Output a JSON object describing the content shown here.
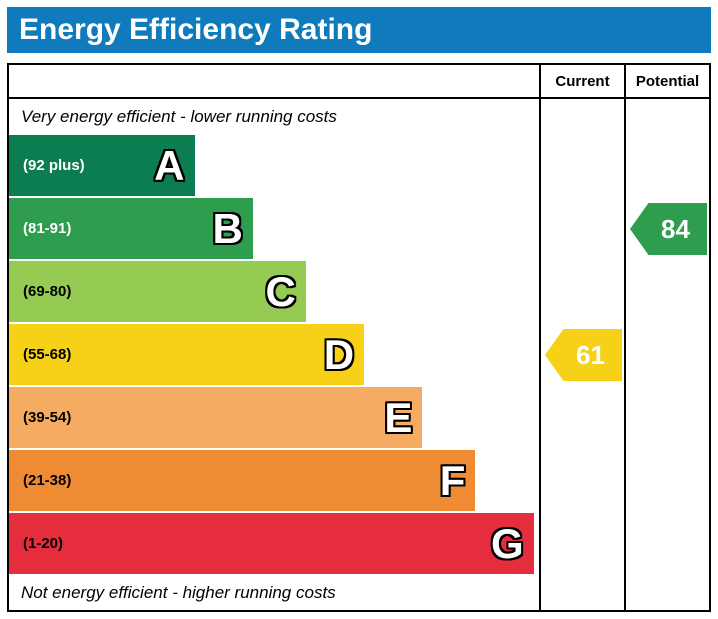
{
  "header": {
    "title": "Energy Efficiency Rating",
    "background_color": "#0f7abc",
    "text_color": "#ffffff"
  },
  "chart_data": {
    "type": "bar",
    "title": "Energy Efficiency Rating",
    "columns": [
      "Current",
      "Potential"
    ],
    "top_note": "Very energy efficient - lower running costs",
    "bottom_note": "Not energy efficient - higher running costs",
    "bands": [
      {
        "letter": "A",
        "range": "(92 plus)",
        "color": "#0c7d50",
        "width_pct": 35,
        "range_text_color": "#ffffff"
      },
      {
        "letter": "B",
        "range": "(81-91)",
        "color": "#2e9d4e",
        "width_pct": 46,
        "range_text_color": "#ffffff"
      },
      {
        "letter": "C",
        "range": "(69-80)",
        "color": "#95ca53",
        "width_pct": 56,
        "range_text_color": "#000000"
      },
      {
        "letter": "D",
        "range": "(55-68)",
        "color": "#f7d117",
        "width_pct": 67,
        "range_text_color": "#000000"
      },
      {
        "letter": "E",
        "range": "(39-54)",
        "color": "#f5ab62",
        "width_pct": 78,
        "range_text_color": "#000000"
      },
      {
        "letter": "F",
        "range": "(21-38)",
        "color": "#ee8b33",
        "width_pct": 88,
        "range_text_color": "#000000"
      },
      {
        "letter": "G",
        "range": "(1-20)",
        "color": "#e52d3e",
        "width_pct": 99,
        "range_text_color": "#000000"
      }
    ],
    "current": {
      "value": 61,
      "band_index": 3,
      "color": "#f7d117"
    },
    "potential": {
      "value": 84,
      "band_index": 1,
      "color": "#2e9d4e"
    }
  }
}
